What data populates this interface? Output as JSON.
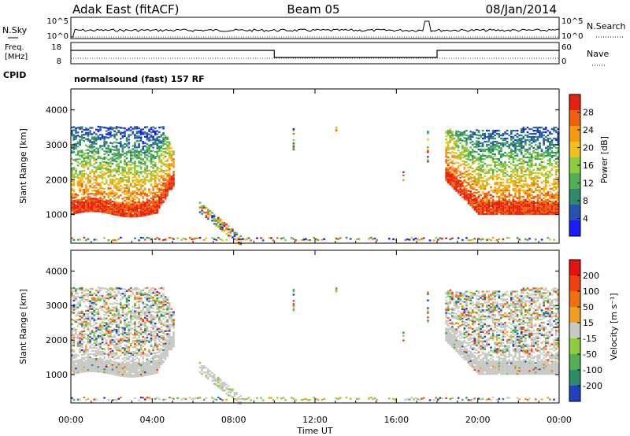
{
  "header": {
    "title": "Adak East (fitACF)",
    "beam": "Beam 05",
    "date": "08/Jan/2014"
  },
  "noise_panel": {
    "left_label": "N.Sky",
    "right_label": "N.Search",
    "left_ticks": [
      "10^5",
      "10^0"
    ],
    "right_ticks": [
      "10^5",
      "10^0"
    ]
  },
  "freq_panel": {
    "left_label_line1": "Freq.",
    "left_label_line2": "[MHz]",
    "right_label": "Nave",
    "left_ticks": [
      "18",
      "8"
    ],
    "right_ticks": [
      "60",
      "0"
    ],
    "cpid_label": "CPID",
    "mode_text": "normalsound (fast) 157 RF"
  },
  "colors": {
    "grey": "#c8c8c4"
  },
  "chart_data": [
    {
      "type": "heatmap",
      "quantity": "Power",
      "ylabel": "Slant Range [km]",
      "ylim": [
        180,
        4600
      ],
      "yticks": [
        "1000",
        "2000",
        "3000",
        "4000"
      ],
      "colorbar_label": "Power [dB]",
      "colorbar_ticks": [
        "4",
        "8",
        "12",
        "16",
        "20",
        "24",
        "28"
      ],
      "colorbar_colors": [
        "#1a1aff",
        "#2554b0",
        "#2e8b6a",
        "#52b052",
        "#8dcc3c",
        "#f0c020",
        "#f59a10",
        "#f06010",
        "#e62010"
      ],
      "colorbar_range": [
        0,
        32
      ]
    },
    {
      "type": "heatmap",
      "quantity": "Velocity",
      "ylabel": "Slant Range [km]",
      "ylim": [
        180,
        4600
      ],
      "yticks": [
        "1000",
        "2000",
        "3000",
        "4000"
      ],
      "colorbar_label": "Velocity [m s⁻¹]",
      "colorbar_ticks": [
        "200",
        "100",
        "50",
        "15",
        "-15",
        "-50",
        "-100",
        "-200"
      ],
      "colorbar_colors": [
        "#2040c0",
        "#2e8b6a",
        "#52b052",
        "#8dcc3c",
        "#c8c8c4",
        "#f0a020",
        "#f07010",
        "#f04010",
        "#e61010"
      ]
    }
  ],
  "xaxis": {
    "label": "Time UT",
    "ticks": [
      "00:00",
      "04:00",
      "08:00",
      "12:00",
      "16:00",
      "20:00",
      "00:00"
    ],
    "range_hours": [
      0,
      24
    ]
  }
}
